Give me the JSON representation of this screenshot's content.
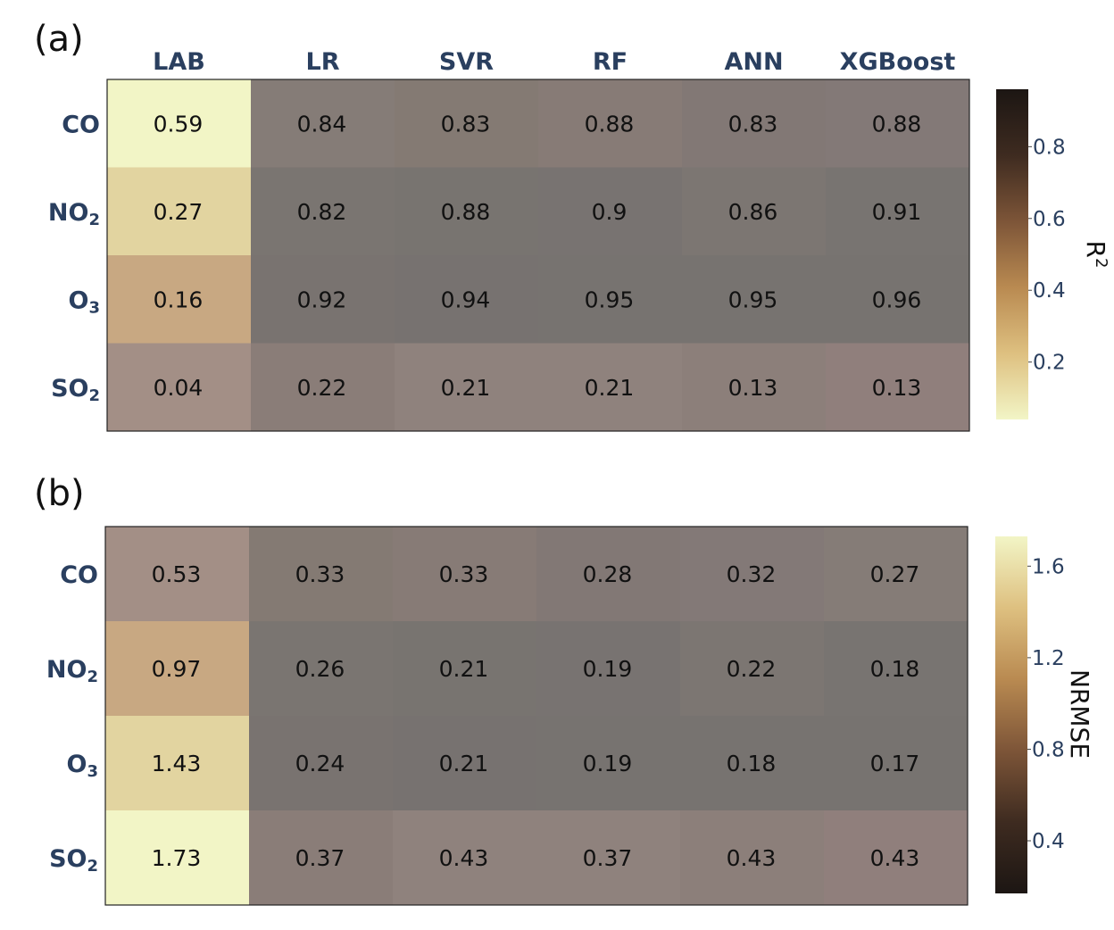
{
  "chart_data": [
    {
      "type": "heatmap",
      "panel_label": "(a)",
      "columns": [
        "LAB",
        "LR",
        "SVR",
        "RF",
        "ANN",
        "XGBoost"
      ],
      "rows": [
        {
          "main": "CO",
          "sub": ""
        },
        {
          "main": "NO",
          "sub": "2"
        },
        {
          "main": "O",
          "sub": "3"
        },
        {
          "main": "SO",
          "sub": "2"
        }
      ],
      "values": [
        [
          0.59,
          0.84,
          0.83,
          0.88,
          0.83,
          0.88
        ],
        [
          0.27,
          0.82,
          0.88,
          0.9,
          0.86,
          0.91
        ],
        [
          0.16,
          0.92,
          0.94,
          0.95,
          0.95,
          0.96
        ],
        [
          0.04,
          0.22,
          0.21,
          0.21,
          0.13,
          0.13
        ]
      ],
      "labels": [
        [
          "0.59",
          "0.84",
          "0.83",
          "0.88",
          "0.83",
          "0.88"
        ],
        [
          "0.27",
          "0.82",
          "0.88",
          "0.9",
          "0.86",
          "0.91"
        ],
        [
          "0.16",
          "0.92",
          "0.94",
          "0.95",
          "0.95",
          "0.96"
        ],
        [
          "0.04",
          "0.22",
          "0.21",
          "0.21",
          "0.13",
          "0.13"
        ]
      ],
      "colorbar": {
        "title": "R",
        "title_sup": "2",
        "range": [
          0.04,
          0.96
        ],
        "ticks": [
          0.2,
          0.4,
          0.6,
          0.8
        ],
        "tick_labels": [
          "0.2",
          "0.4",
          "0.6",
          "0.8"
        ],
        "colorscale": [
          "#f2f5c6",
          "#dec080",
          "#b98a51",
          "#7d5538",
          "#3e2b20",
          "#1c1613"
        ]
      },
      "lab_color_stops": [
        "#f2f5c6",
        "#e2d4a0",
        "#c8a882",
        "#a38f86"
      ],
      "model_colors": [
        [
          "#857c77",
          "#847a73",
          "#877b76",
          "#827875",
          "#837977"
        ],
        [
          "#7a7571",
          "#787470",
          "#787371",
          "#7c7672",
          "#787471"
        ],
        [
          "#797370",
          "#777270",
          "#777370",
          "#777370",
          "#777370"
        ],
        [
          "#8a7d78",
          "#8f827d",
          "#8f827d",
          "#8c7f7a",
          "#907f7c"
        ]
      ]
    },
    {
      "type": "heatmap",
      "panel_label": "(b)",
      "columns": [
        "LAB",
        "LR",
        "SVR",
        "RF",
        "ANN",
        "XGBoost"
      ],
      "rows": [
        {
          "main": "CO",
          "sub": ""
        },
        {
          "main": "NO",
          "sub": "2"
        },
        {
          "main": "O",
          "sub": "3"
        },
        {
          "main": "SO",
          "sub": "2"
        }
      ],
      "values": [
        [
          0.53,
          0.33,
          0.33,
          0.28,
          0.32,
          0.27
        ],
        [
          0.97,
          0.26,
          0.21,
          0.19,
          0.22,
          0.18
        ],
        [
          1.43,
          0.24,
          0.21,
          0.19,
          0.18,
          0.17
        ],
        [
          1.73,
          0.37,
          0.43,
          0.37,
          0.43,
          0.43
        ]
      ],
      "labels": [
        [
          "0.53",
          "0.33",
          "0.33",
          "0.28",
          "0.32",
          "0.27"
        ],
        [
          "0.97",
          "0.26",
          "0.21",
          "0.19",
          "0.22",
          "0.18"
        ],
        [
          "1.43",
          "0.24",
          "0.21",
          "0.19",
          "0.18",
          "0.17"
        ],
        [
          "1.73",
          "0.37",
          "0.43",
          "0.37",
          "0.43",
          "0.43"
        ]
      ],
      "colorbar": {
        "title": "NRMSE",
        "title_sup": "",
        "range": [
          0.17,
          1.73
        ],
        "ticks": [
          0.4,
          0.8,
          1.2,
          1.6
        ],
        "tick_labels": [
          "0.4",
          "0.8",
          "1.2",
          "1.6"
        ],
        "colorscale": [
          "#1c1613",
          "#3e2b20",
          "#7d5538",
          "#b98a51",
          "#dec080",
          "#f2f5c6"
        ]
      },
      "lab_color_stops": [
        "#a38f86",
        "#c8a882",
        "#e2d4a0",
        "#f2f5c6"
      ],
      "model_colors": [
        [
          "#847a73",
          "#877b76",
          "#827875",
          "#837977",
          "#857c77"
        ],
        [
          "#7a7571",
          "#787470",
          "#787371",
          "#7c7672",
          "#787471"
        ],
        [
          "#797370",
          "#777270",
          "#777370",
          "#777370",
          "#777370"
        ],
        [
          "#8a7d78",
          "#8f827d",
          "#8f827d",
          "#8c7f7a",
          "#907f7c"
        ]
      ]
    }
  ]
}
